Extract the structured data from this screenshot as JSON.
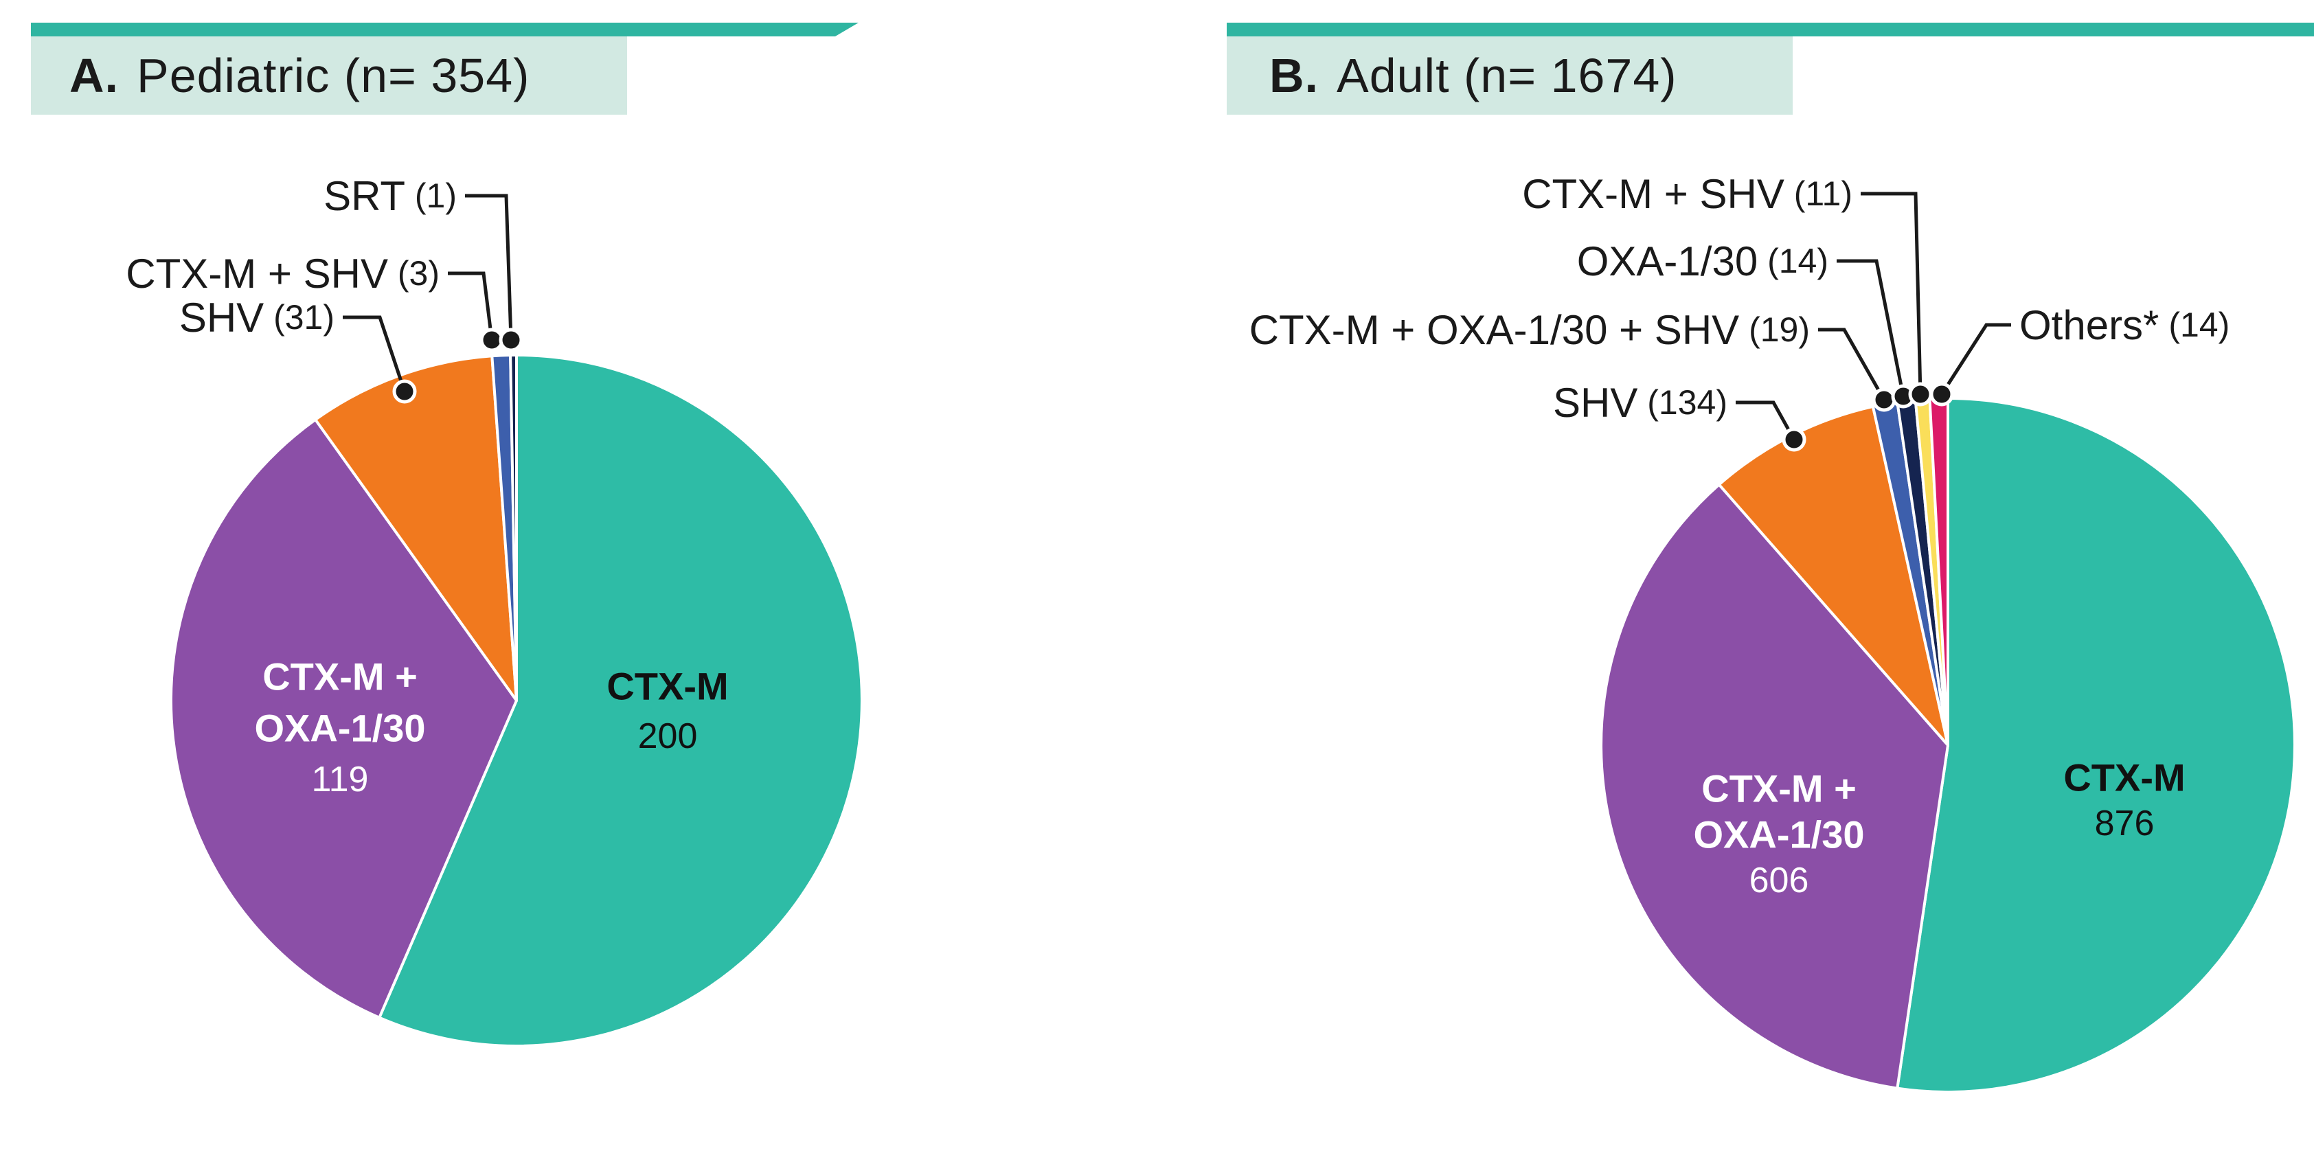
{
  "figure": {
    "background": "#ffffff",
    "accent_bar_color": "#2fb5a1",
    "header_box_color": "#d2e9e2",
    "text_color": "#1a1a1a",
    "leader_line_color": "#1a1a1a",
    "slice_gap_color": "#ffffff"
  },
  "chart_data": [
    {
      "type": "pie",
      "panel_letter": "A.",
      "title": "Pediatric (n= 354)",
      "n_total": 354,
      "start_angle_deg": 0,
      "direction": "clockwise",
      "legend_position": "none",
      "slices": [
        {
          "label": "CTX-M",
          "value": 200,
          "color": "#2ebca6",
          "label_style": "inside",
          "label_lines": [
            "CTX-M"
          ],
          "text_color": "#111111"
        },
        {
          "label": "CTX-M + OXA-1/30",
          "value": 119,
          "color": "#8b4fa7",
          "label_style": "inside",
          "label_lines": [
            "CTX-M +",
            "OXA-1/30"
          ],
          "text_color": "#ffffff"
        },
        {
          "label": "SHV",
          "value": 31,
          "color": "#f1791e",
          "label_style": "callout"
        },
        {
          "label": "CTX-M + SHV",
          "value": 3,
          "color": "#3d5fac",
          "label_style": "callout"
        },
        {
          "label": "SRT",
          "value": 1,
          "color": "#152450",
          "label_style": "callout"
        }
      ]
    },
    {
      "type": "pie",
      "panel_letter": "B.",
      "title": "Adult (n= 1674)",
      "n_total": 1674,
      "start_angle_deg": 0,
      "direction": "clockwise",
      "legend_position": "none",
      "slices": [
        {
          "label": "CTX-M",
          "value": 876,
          "color": "#2ebca6",
          "label_style": "inside",
          "label_lines": [
            "CTX-M"
          ],
          "text_color": "#111111"
        },
        {
          "label": "CTX-M + OXA-1/30",
          "value": 606,
          "color": "#8b4fa7",
          "label_style": "inside",
          "label_lines": [
            "CTX-M +",
            "OXA-1/30"
          ],
          "text_color": "#ffffff"
        },
        {
          "label": "SHV",
          "value": 134,
          "color": "#f1791e",
          "label_style": "callout"
        },
        {
          "label": "CTX-M + OXA-1/30 + SHV",
          "value": 19,
          "color": "#3d5fac",
          "label_style": "callout"
        },
        {
          "label": "OXA-1/30",
          "value": 14,
          "color": "#152450",
          "label_style": "callout"
        },
        {
          "label": "CTX-M + SHV",
          "value": 11,
          "color": "#fade5a",
          "label_style": "callout"
        },
        {
          "label": "Others*",
          "value": 14,
          "color": "#dc1a68",
          "label_style": "callout"
        }
      ]
    }
  ]
}
